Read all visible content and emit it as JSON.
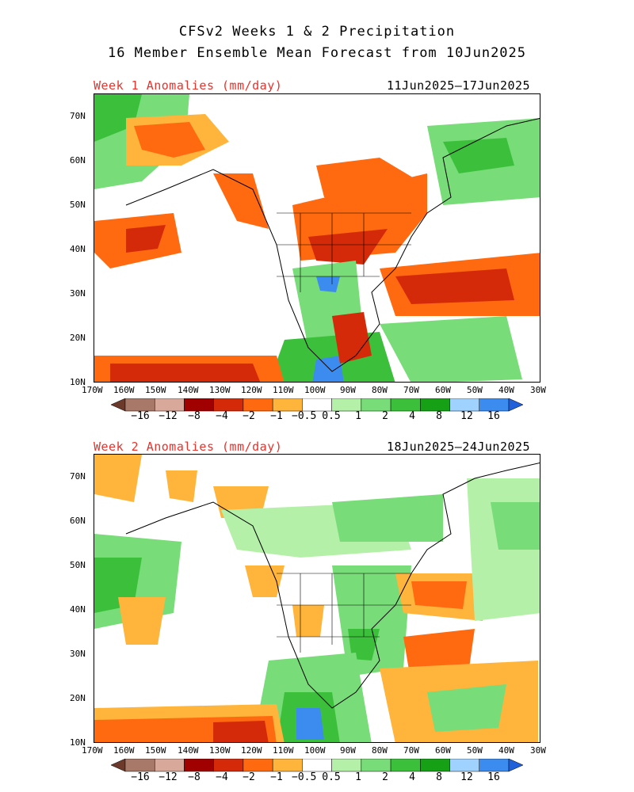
{
  "header": {
    "title_line1": "CFSv2 Weeks 1 & 2 Precipitation",
    "title_line2": "16 Member Ensemble Mean Forecast from 10Jun2025"
  },
  "panels": [
    {
      "label": "Week 1 Anomalies (mm/day)",
      "dates": "11Jun2025–17Jun2025"
    },
    {
      "label": "Week 2 Anomalies (mm/day)",
      "dates": "18Jun2025–24Jun2025"
    }
  ],
  "axes": {
    "lat_labels": [
      "70N",
      "60N",
      "50N",
      "40N",
      "30N",
      "20N",
      "10N"
    ],
    "lon_labels": [
      "170W",
      "160W",
      "150W",
      "140W",
      "130W",
      "120W",
      "110W",
      "100W",
      "90W",
      "80W",
      "70W",
      "60W",
      "50W",
      "40W",
      "30W"
    ]
  },
  "colorbar": {
    "labels": [
      "−16",
      "−12",
      "−8",
      "−4",
      "−2",
      "−1",
      "−0.5",
      "0.5",
      "1",
      "2",
      "4",
      "8",
      "12",
      "16"
    ],
    "colors": [
      "#6b3a2a",
      "#a87868",
      "#d8a89a",
      "#a00000",
      "#d42a0a",
      "#ff6a10",
      "#ffb43c",
      "#ffffff",
      "#b4f0a8",
      "#78dc78",
      "#3cc03c",
      "#16a016",
      "#a0d2ff",
      "#3c8cf0",
      "#2060d8"
    ]
  }
}
